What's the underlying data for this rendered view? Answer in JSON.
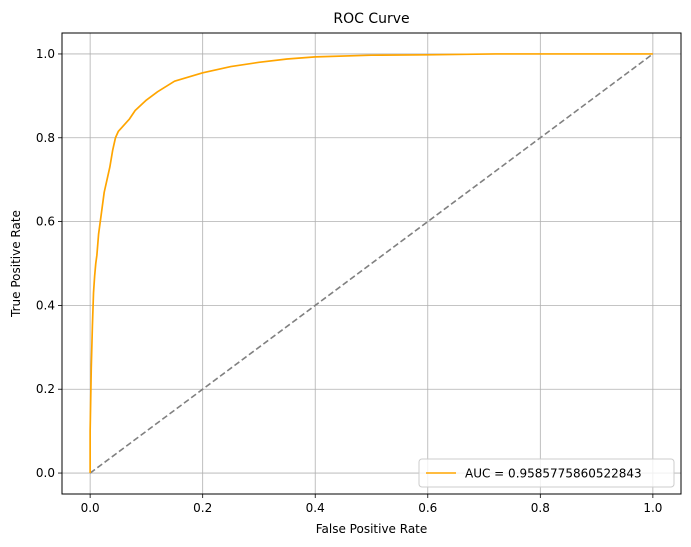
{
  "chart_data": {
    "type": "line",
    "title": "ROC Curve",
    "xlabel": "False Positive Rate",
    "ylabel": "True Positive Rate",
    "xlim": [
      -0.05,
      1.05
    ],
    "ylim": [
      -0.05,
      1.05
    ],
    "x_ticks": [
      0.0,
      0.2,
      0.4,
      0.6,
      0.8,
      1.0
    ],
    "y_ticks": [
      0.0,
      0.2,
      0.4,
      0.6,
      0.8,
      1.0
    ],
    "x_tick_labels": [
      "0.0",
      "0.2",
      "0.4",
      "0.6",
      "0.8",
      "1.0"
    ],
    "y_tick_labels": [
      "0.0",
      "0.2",
      "0.4",
      "0.6",
      "0.8",
      "1.0"
    ],
    "grid": true,
    "legend_position": "lower-right",
    "series": [
      {
        "name": "AUC = 0.9585775860522843",
        "color": "#ffa500",
        "style": "solid",
        "x": [
          0.0,
          0.0,
          0.002,
          0.004,
          0.006,
          0.008,
          0.01,
          0.012,
          0.015,
          0.02,
          0.025,
          0.03,
          0.035,
          0.04,
          0.045,
          0.05,
          0.06,
          0.07,
          0.08,
          0.1,
          0.12,
          0.15,
          0.2,
          0.25,
          0.3,
          0.35,
          0.4,
          0.5,
          0.6,
          0.72,
          1.0
        ],
        "y": [
          0.0,
          0.1,
          0.25,
          0.35,
          0.43,
          0.47,
          0.5,
          0.52,
          0.57,
          0.62,
          0.67,
          0.7,
          0.73,
          0.77,
          0.8,
          0.815,
          0.83,
          0.845,
          0.865,
          0.89,
          0.91,
          0.935,
          0.955,
          0.97,
          0.98,
          0.988,
          0.993,
          0.997,
          0.998,
          1.0,
          1.0
        ]
      },
      {
        "name": "",
        "color": "#808080",
        "style": "dashed",
        "x": [
          0.0,
          1.0
        ],
        "y": [
          0.0,
          1.0
        ]
      }
    ]
  }
}
